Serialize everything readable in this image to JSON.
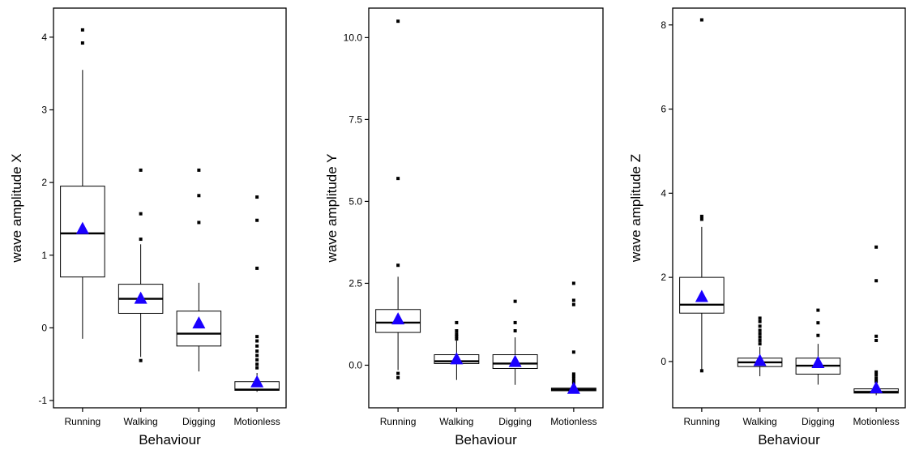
{
  "chart_data": [
    {
      "type": "boxplot",
      "xlabel": "Behaviour",
      "ylabel": "wave amplitude X",
      "categories": [
        "Running",
        "Walking",
        "Digging",
        "Motionless"
      ],
      "ylim": [
        -1.1,
        4.4
      ],
      "yticks": [
        -1,
        0,
        1,
        2,
        3,
        4
      ],
      "ytick_labels": [
        "-1",
        "0",
        "1",
        "2",
        "3",
        "4"
      ],
      "boxes": [
        {
          "category": "Running",
          "whisker_low": -0.15,
          "q1": 0.7,
          "median": 1.3,
          "q3": 1.95,
          "whisker_high": 3.55,
          "mean": 1.37,
          "outliers": [
            3.92,
            4.1
          ]
        },
        {
          "category": "Walking",
          "whisker_low": -0.4,
          "q1": 0.2,
          "median": 0.4,
          "q3": 0.6,
          "whisker_high": 1.15,
          "mean": 0.41,
          "outliers": [
            -0.45,
            1.22,
            1.57,
            2.17
          ]
        },
        {
          "category": "Digging",
          "whisker_low": -0.6,
          "q1": -0.25,
          "median": -0.08,
          "q3": 0.23,
          "whisker_high": 0.62,
          "mean": 0.07,
          "outliers": [
            1.45,
            1.82,
            2.17
          ]
        },
        {
          "category": "Motionless",
          "whisker_low": -0.88,
          "q1": -0.86,
          "median": -0.85,
          "q3": -0.74,
          "whisker_high": -0.62,
          "mean": -0.74,
          "outliers": [
            -0.55,
            -0.5,
            -0.44,
            -0.38,
            -0.32,
            -0.25,
            -0.18,
            -0.12,
            0.82,
            1.48,
            1.8
          ]
        }
      ]
    },
    {
      "type": "boxplot",
      "xlabel": "Behaviour",
      "ylabel": "wave amplitude Y",
      "categories": [
        "Running",
        "Walking",
        "Digging",
        "Motionless"
      ],
      "ylim": [
        -1.3,
        10.9
      ],
      "yticks": [
        0,
        2.5,
        5,
        7.5,
        10
      ],
      "ytick_labels": [
        "0.0",
        "2.5",
        "5.0",
        "7.5",
        "10.0"
      ],
      "boxes": [
        {
          "category": "Running",
          "whisker_low": -0.15,
          "q1": 1.0,
          "median": 1.3,
          "q3": 1.7,
          "whisker_high": 2.7,
          "mean": 1.42,
          "outliers": [
            -0.25,
            -0.38,
            3.05,
            5.7,
            10.5
          ]
        },
        {
          "category": "Walking",
          "whisker_low": -0.45,
          "q1": 0.05,
          "median": 0.12,
          "q3": 0.32,
          "whisker_high": 0.75,
          "mean": 0.2,
          "outliers": [
            0.8,
            0.88,
            0.95,
            1.05,
            1.3
          ]
        },
        {
          "category": "Digging",
          "whisker_low": -0.6,
          "q1": -0.1,
          "median": 0.05,
          "q3": 0.32,
          "whisker_high": 0.85,
          "mean": 0.12,
          "outliers": [
            1.05,
            1.3,
            1.95
          ]
        },
        {
          "category": "Motionless",
          "whisker_low": -0.78,
          "q1": -0.78,
          "median": -0.74,
          "q3": -0.7,
          "whisker_high": -0.62,
          "mean": -0.7,
          "outliers": [
            -0.55,
            -0.48,
            -0.4,
            -0.33,
            -0.27,
            0.4,
            1.85,
            1.98,
            2.5
          ]
        }
      ]
    },
    {
      "type": "boxplot",
      "xlabel": "Behaviour",
      "ylabel": "wave amplitude Z",
      "categories": [
        "Running",
        "Walking",
        "Digging",
        "Motionless"
      ],
      "ylim": [
        -1.1,
        8.4
      ],
      "yticks": [
        0,
        2,
        4,
        6,
        8
      ],
      "ytick_labels": [
        "0",
        "2",
        "4",
        "6",
        "8"
      ],
      "boxes": [
        {
          "category": "Running",
          "whisker_low": -0.2,
          "q1": 1.15,
          "median": 1.35,
          "q3": 2.0,
          "whisker_high": 3.2,
          "mean": 1.55,
          "outliers": [
            -0.22,
            3.38,
            3.45,
            8.12
          ]
        },
        {
          "category": "Walking",
          "whisker_low": -0.35,
          "q1": -0.12,
          "median": -0.02,
          "q3": 0.08,
          "whisker_high": 0.35,
          "mean": 0.03,
          "outliers": [
            0.42,
            0.5,
            0.58,
            0.66,
            0.74,
            0.84,
            0.95,
            1.03
          ]
        },
        {
          "category": "Digging",
          "whisker_low": -0.55,
          "q1": -0.3,
          "median": -0.1,
          "q3": 0.08,
          "whisker_high": 0.42,
          "mean": -0.02,
          "outliers": [
            0.62,
            0.92,
            1.22
          ]
        },
        {
          "category": "Motionless",
          "whisker_low": -0.8,
          "q1": -0.75,
          "median": -0.72,
          "q3": -0.65,
          "whisker_high": -0.55,
          "mean": -0.62,
          "outliers": [
            -0.47,
            -0.4,
            -0.32,
            -0.25,
            0.5,
            0.6,
            1.92,
            2.72
          ]
        }
      ]
    }
  ],
  "colors": {
    "mean_marker": "#1a00ff",
    "axis": "#000000",
    "background": "#ffffff"
  }
}
